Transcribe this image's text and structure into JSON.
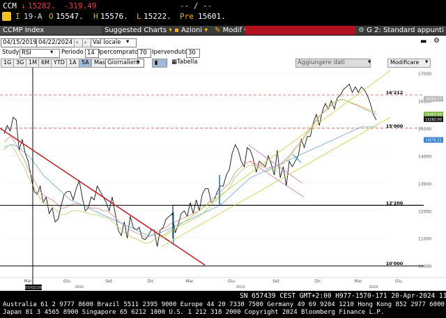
{
  "quote": {
    "ticker": "CCM",
    "last_arrow": "↓",
    "last": "15282.",
    "change": "-319.49",
    "tail": "-- / --",
    "flag": "I",
    "date": "19-A",
    "open_label": "O",
    "open": "15547.",
    "high_label": "H",
    "high": "15576.",
    "low_label": "L",
    "low": "15222.",
    "prev_label": "Pre",
    "prev": "15601."
  },
  "fnbar": {
    "security": "CCMP Index",
    "suggested": "Suggested Charts",
    "actions": "Azioni",
    "modify": "Modif",
    "page": "G 2: Standard appunti"
  },
  "toolbar": {
    "start_date": "04/15/2019",
    "end_date": "04/22/2024",
    "currency": "Val locale",
    "study_label": "Study",
    "study": "RSI",
    "period_label": "Periodo",
    "period": "14",
    "overbought_label": "Ipercomprato",
    "overbought": "70",
    "oversold_label": "Ipervenduto",
    "oversold": "30",
    "ranges": [
      "1G",
      "3G",
      "1M",
      "6M",
      "YTD",
      "1A",
      "5A",
      "Mass"
    ],
    "frequency": "Giornaliero",
    "table": "Tabella",
    "add_data": "Aggiungere dati",
    "modify_chart": "Modificare"
  },
  "chart_data": {
    "type": "line",
    "y_ticks": [
      "17000",
      "16000",
      "15000",
      "14000",
      "13000",
      "12000",
      "11000",
      "10000"
    ],
    "ylim": [
      9600,
      17100
    ],
    "x_ticks": [
      "Mar",
      "Giu",
      "Set",
      "Dic",
      "Mar",
      "Giu",
      "Set",
      "Dic",
      "Mar",
      "Giu"
    ],
    "year_labels": [
      "2022",
      "2023",
      "2024"
    ],
    "cursor_label": "03/02/20",
    "levels": [
      {
        "label": "16'212",
        "value": 16212,
        "style": "dash"
      },
      {
        "label": "15'000",
        "value": 15000,
        "style": "dash"
      },
      {
        "label": "12'200",
        "value": 12200,
        "style": "solid"
      },
      {
        "label": "10'000",
        "value": 10000,
        "style": "solid"
      }
    ],
    "tags": [
      {
        "label": "16068.57",
        "value": 16068,
        "color": "#b9b9b9"
      },
      {
        "label": "15407.09",
        "value": 15500,
        "color": "#7ab840"
      },
      {
        "label": "15282.00",
        "value": 15330,
        "color": "#111111"
      },
      {
        "label": "14576.22",
        "value": 14576,
        "color": "#3a80c8"
      }
    ],
    "series": [
      {
        "values": [
          14800,
          15100,
          14900,
          15400,
          15300,
          14200,
          14600,
          14100,
          13800,
          13200,
          12700,
          12600,
          12900,
          12300,
          12500,
          11900,
          12100,
          11600,
          11700,
          12200,
          12600,
          12700,
          12700,
          12400,
          12800,
          13100,
          12500,
          12000,
          12100,
          12500,
          12400,
          12900,
          12700,
          12500,
          12300,
          12000,
          12500,
          11900,
          11300,
          11100,
          11600,
          11000,
          11800,
          11400,
          11300,
          11400,
          11000,
          10950,
          11100,
          11300,
          11300,
          10700,
          11300,
          11400,
          11700,
          11800,
          11900,
          11200,
          11500,
          11900,
          12000,
          11800,
          12300,
          11900,
          12400,
          12000,
          12600,
          12800,
          12800,
          12300,
          12400,
          12700,
          12900,
          12900,
          13300,
          13500,
          14100,
          14400,
          14200,
          13800,
          13600,
          14300,
          14200,
          13900,
          13400,
          13800,
          13700,
          13600,
          14000,
          13700,
          13300,
          14200,
          13200,
          13600,
          12900,
          13800,
          13600,
          13800,
          14000,
          14600,
          14300,
          14700,
          14700,
          15200,
          15500,
          15100,
          15600,
          15900,
          15700,
          16000,
          15700,
          16100,
          16200,
          16400,
          16500,
          16600,
          16300,
          16500,
          16300,
          16500,
          16400,
          16200,
          15900,
          15500,
          15300
        ]
      },
      {
        "values": [
          14500,
          14600,
          14700,
          14600,
          14400,
          14200,
          14000,
          13800,
          13500,
          13300,
          13100,
          12900,
          12700,
          12600,
          12500,
          12450,
          12400,
          12300,
          12200,
          12100,
          12100,
          12150,
          12200,
          12250,
          12250,
          12250,
          12200,
          12200,
          12150,
          12100,
          12100,
          12100,
          12050,
          12000,
          12000,
          11950,
          11850,
          11750,
          11650,
          11550,
          11450,
          11350,
          11300,
          11250,
          11200,
          11150,
          11100,
          11050,
          11050,
          11100,
          11200,
          11250,
          11300,
          11350,
          11400,
          11500,
          11550,
          11600,
          11650,
          11700,
          11750,
          11800,
          11850,
          11900,
          11950,
          12000,
          12100,
          12200,
          12300,
          12400,
          12500,
          12600,
          12700,
          12800,
          12900,
          13000,
          13200,
          13400,
          13500,
          13600,
          13700,
          13750,
          13800,
          13800,
          13700,
          13700,
          13600,
          13550,
          13550,
          13600,
          13600,
          13650,
          13700,
          13800,
          13900,
          14000,
          14150,
          14300,
          14400,
          14550,
          14700,
          14850,
          15000,
          15150,
          15300,
          15450,
          15550,
          15650,
          15750,
          15850,
          15950,
          16000,
          16050,
          16050,
          16000,
          15950,
          15900,
          15850,
          15800,
          15750,
          15700,
          15650,
          15600,
          15550,
          15500
        ]
      },
      {
        "values": [
          14300,
          14350,
          14400,
          14400,
          14350,
          14300,
          14200,
          14100,
          14000,
          13900,
          13750,
          13600,
          13450,
          13300,
          13200,
          13100,
          13000,
          12900,
          12800,
          12700,
          12600,
          12500,
          12400,
          12350,
          12300,
          12250,
          12200,
          12150,
          12100,
          12050,
          12000,
          11950,
          11900,
          11850,
          11800,
          11750,
          11700,
          11650,
          11600,
          11550,
          11500,
          11450,
          11400,
          11350,
          11300,
          11250,
          11200,
          11150,
          11100,
          11100,
          11100,
          11150,
          11200,
          11250,
          11300,
          11350,
          11400,
          11450,
          11500,
          11550,
          11600,
          11650,
          11700,
          11750,
          11800,
          11850,
          11900,
          11950,
          12000,
          12050,
          12100,
          12150,
          12200,
          12300,
          12400,
          12500,
          12600,
          12700,
          12800,
          12900,
          13000,
          13100,
          13200,
          13250,
          13300,
          13350,
          13400,
          13450,
          13500,
          13550,
          13600,
          13650,
          13700,
          13750,
          13800,
          13850,
          13900,
          13950,
          14000,
          14050,
          14100,
          14150,
          14200,
          14250,
          14300,
          14350,
          14400,
          14450,
          14500,
          14550,
          14600,
          14650,
          14700,
          14750,
          14800,
          14850,
          14900,
          14950,
          15000,
          15050,
          15050,
          15050,
          15050,
          15050,
          15050
        ]
      }
    ]
  },
  "footer": {
    "line1": "SN 657439 CEST GMT+2:00 H977-1570-171 20-Apr-2024 11:30:",
    "line2": "Australia 61 2 9777 8600 Brazil 5511 2395 9000 Europe 44 20 7330 7500 Germany 49 69 9204 1210 Hong Kong 852 2977 6000",
    "line3": "Japan 81 3 4565 8900         Singapore 65 6212 1000         U.S. 1 212 318 2000         Copyright 2024 Bloomberg Finance L.P."
  }
}
